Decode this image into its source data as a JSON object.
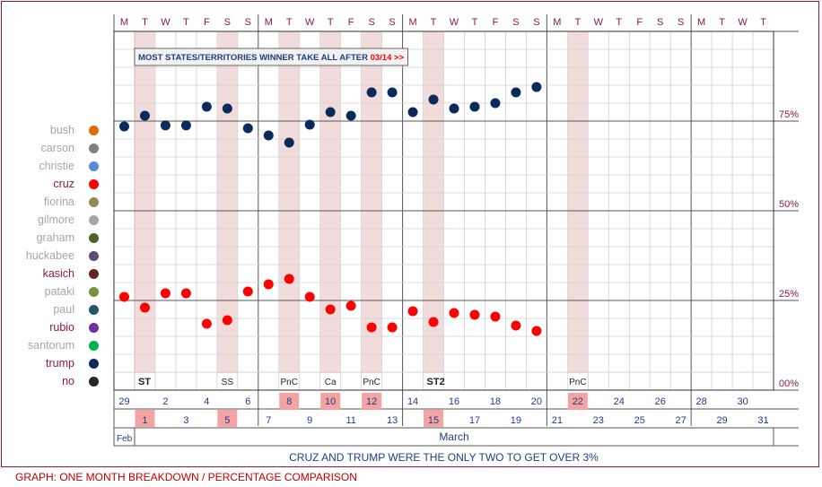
{
  "chart_data": {
    "type": "scatter",
    "banner": {
      "text": "MOST STATES/TERRITORIES WINNER TAKE ALL AFTER ",
      "highlight": "03/14 >>"
    },
    "caption": "CRUZ AND TRUMP WERE THE ONLY TWO TO GET OVER 3%",
    "ytick_labels": [
      "00%",
      "25%",
      "50%",
      "75%"
    ],
    "yticks": [
      0,
      25,
      50,
      75
    ],
    "ylim": [
      0,
      100
    ],
    "weekdays": [
      "M",
      "T",
      "W",
      "T",
      "F",
      "S",
      "S",
      "M",
      "T",
      "W",
      "T",
      "F",
      "S",
      "S",
      "M",
      "T",
      "W",
      "T",
      "F",
      "S",
      "S",
      "M",
      "T",
      "W",
      "T",
      "F",
      "S",
      "S",
      "M",
      "T",
      "W",
      "T"
    ],
    "top_dates": [
      "29",
      "2",
      "4",
      "6",
      "8",
      "10",
      "12",
      "14",
      "16",
      "18",
      "20",
      "22",
      "24",
      "26",
      "28",
      "30"
    ],
    "bottom_dates": [
      "1",
      "3",
      "5",
      "7",
      "9",
      "11",
      "13",
      "15",
      "17",
      "19",
      "21",
      "23",
      "25",
      "27",
      "29",
      "31"
    ],
    "month_labels": {
      "feb": "Feb",
      "march": "March"
    },
    "event_labels": [
      {
        "day": 1,
        "text": "ST"
      },
      {
        "day": 5,
        "text": "SS"
      },
      {
        "day": 8,
        "text": "PnC"
      },
      {
        "day": 10,
        "text": "Ca"
      },
      {
        "day": 12,
        "text": "PnC"
      },
      {
        "day": 15,
        "text": "ST2"
      },
      {
        "day": 22,
        "text": "PnC"
      }
    ],
    "highlight_days": [
      1,
      5,
      8,
      10,
      12,
      15,
      22
    ],
    "x": [
      0,
      1,
      2,
      3,
      4,
      5,
      6,
      7,
      8,
      9,
      10,
      11,
      12,
      13,
      14,
      15,
      16,
      17,
      18,
      19,
      20
    ],
    "series": [
      {
        "name": "trump",
        "color": "#0b2a5c",
        "values": [
          73.5,
          76.5,
          73.8,
          73.8,
          79,
          78.5,
          73,
          71,
          69,
          74,
          77.5,
          76.5,
          83,
          83,
          77.5,
          81,
          78.5,
          79,
          80,
          83,
          84.5
        ]
      },
      {
        "name": "cruz",
        "color": "#ff0000",
        "values": [
          26,
          23,
          27,
          27,
          18.5,
          19.5,
          27.5,
          29.5,
          31,
          26,
          22.5,
          23.5,
          17.5,
          17.5,
          22,
          19,
          21.5,
          21,
          20.5,
          18,
          16.5
        ]
      }
    ]
  },
  "legend": [
    {
      "name": "bush",
      "color": "#e36c09",
      "text_color": "#a6a6a6"
    },
    {
      "name": "carson",
      "color": "#7f7f7f",
      "text_color": "#a6a6a6"
    },
    {
      "name": "christie",
      "color": "#558ed5",
      "text_color": "#a6a6a6"
    },
    {
      "name": "cruz",
      "color": "#ff0000",
      "text_color": "#8b1a4a"
    },
    {
      "name": "fiorina",
      "color": "#948a54",
      "text_color": "#a6a6a6"
    },
    {
      "name": "gilmore",
      "color": "#a6a6a6",
      "text_color": "#a6a6a6"
    },
    {
      "name": "graham",
      "color": "#4f6228",
      "text_color": "#a6a6a6"
    },
    {
      "name": "huckabee",
      "color": "#604a7b",
      "text_color": "#a6a6a6"
    },
    {
      "name": "kasich",
      "color": "#632523",
      "text_color": "#8b1a4a"
    },
    {
      "name": "pataki",
      "color": "#77933c",
      "text_color": "#a6a6a6"
    },
    {
      "name": "paul",
      "color": "#215967",
      "text_color": "#a6a6a6"
    },
    {
      "name": "rubio",
      "color": "#7030a0",
      "text_color": "#8b1a4a"
    },
    {
      "name": "santorum",
      "color": "#00b050",
      "text_color": "#a6a6a6"
    },
    {
      "name": "trump",
      "color": "#0b2a5c",
      "text_color": "#8b1a4a"
    },
    {
      "name": "no",
      "color": "#262626",
      "text_color": "#8b1a4a"
    }
  ],
  "footer": "GRAPH: ONE MONTH BREAKDOWN / PERCENTAGE COMPARISON"
}
